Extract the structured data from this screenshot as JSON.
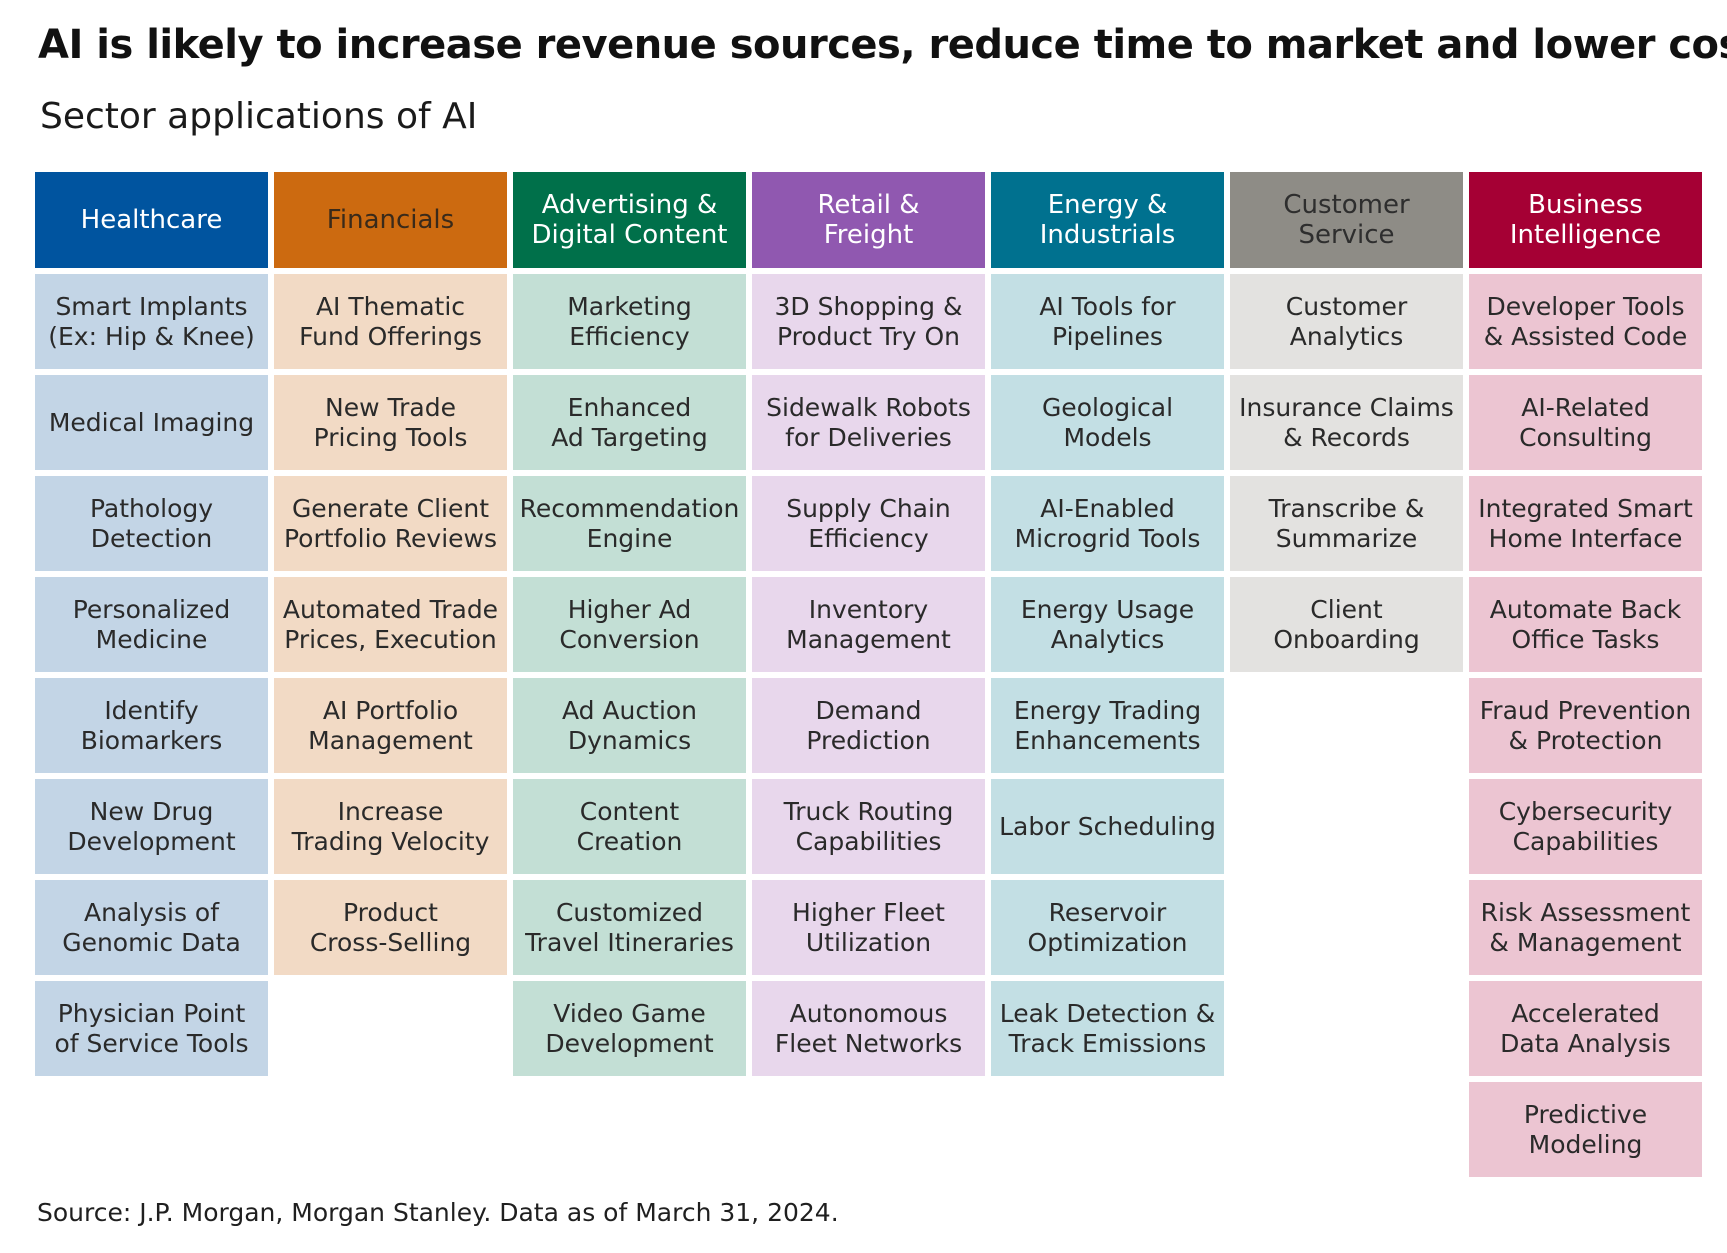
{
  "title": "AI is likely to increase revenue sources, reduce time to market and lower costs",
  "subtitle": "Sector applications of AI",
  "source": "Source: J.P. Morgan, Morgan Stanley. Data as of March 31, 2024.",
  "sectors": [
    {
      "name": "Healthcare",
      "header_color": "#00549f",
      "header_text_color": "#ffffff",
      "cell_color": "#c3d5e6",
      "items": [
        "Smart Implants\n(Ex: Hip & Knee)",
        "Medical Imaging",
        "Pathology\nDetection",
        "Personalized\nMedicine",
        "Identify\nBiomarkers",
        "New Drug\nDevelopment",
        "Analysis of\nGenomic Data",
        "Physician Point\nof Service Tools"
      ]
    },
    {
      "name": "Financials",
      "header_color": "#cc6a10",
      "header_text_color": "#3a2a1a",
      "cell_color": "#f2dac5",
      "items": [
        "AI Thematic\nFund Offerings",
        "New Trade\nPricing Tools",
        "Generate Client\nPortfolio Reviews",
        "Automated Trade\nPrices, Execution",
        "AI Portfolio\nManagement",
        "Increase\nTrading Velocity",
        "Product\nCross-Selling"
      ]
    },
    {
      "name": "Advertising &\nDigital Content",
      "header_color": "#00704a",
      "header_text_color": "#ffffff",
      "cell_color": "#c3dfd5",
      "items": [
        "Marketing\nEfficiency",
        "Enhanced\nAd Targeting",
        "Recommendation\nEngine",
        "Higher Ad\nConversion",
        "Ad Auction\nDynamics",
        "Content\nCreation",
        "Customized\nTravel Itineraries",
        "Video Game\nDevelopment"
      ]
    },
    {
      "name": "Retail &\nFreight",
      "header_color": "#9058b0",
      "header_text_color": "#ffffff",
      "cell_color": "#e8d7ec",
      "items": [
        "3D Shopping &\nProduct Try On",
        "Sidewalk Robots\nfor Deliveries",
        "Supply Chain\nEfficiency",
        "Inventory\nManagement",
        "Demand\nPrediction",
        "Truck Routing\nCapabilities",
        "Higher Fleet\nUtilization",
        "Autonomous\nFleet Networks"
      ]
    },
    {
      "name": "Energy &\nIndustrials",
      "header_color": "#00718f",
      "header_text_color": "#ffffff",
      "cell_color": "#c3dfe4",
      "items": [
        "AI Tools for\nPipelines",
        "Geological\nModels",
        "AI-Enabled\nMicrogrid Tools",
        "Energy Usage\nAnalytics",
        "Energy Trading\nEnhancements",
        "Labor Scheduling",
        "Reservoir\nOptimization",
        "Leak Detection &\nTrack Emissions"
      ]
    },
    {
      "name": "Customer\nService",
      "header_color": "#8e8c86",
      "header_text_color": "#2e2e2e",
      "cell_color": "#e3e2e0",
      "items": [
        "Customer\nAnalytics",
        "Insurance Claims\n& Records",
        "Transcribe &\nSummarize",
        "Client\nOnboarding"
      ]
    },
    {
      "name": "Business\nIntelligence",
      "header_color": "#a50034",
      "header_text_color": "#ffffff",
      "cell_color": "#ecc5d2",
      "items": [
        "Developer Tools\n& Assisted Code",
        "AI-Related\nConsulting",
        "Integrated Smart\nHome Interface",
        "Automate Back\nOffice Tasks",
        "Fraud Prevention\n& Protection",
        "Cybersecurity\nCapabilities",
        "Risk Assessment\n& Management",
        "Accelerated\nData Analysis",
        "Predictive\nModeling"
      ]
    }
  ]
}
